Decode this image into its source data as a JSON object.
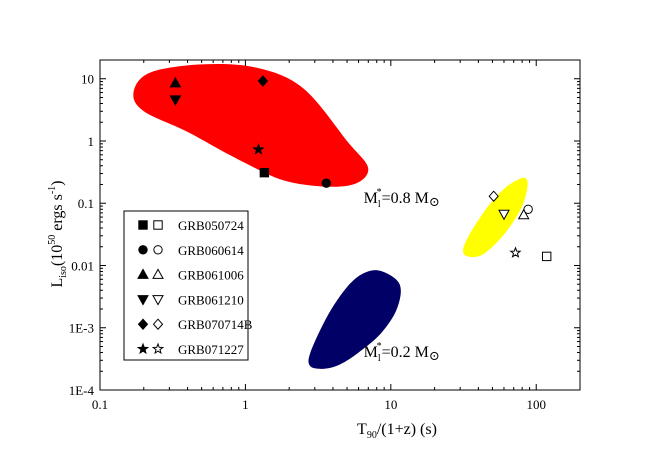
{
  "chart_data": {
    "type": "scatter",
    "title": "",
    "xscale": "log",
    "yscale": "log",
    "xlim": [
      0.1,
      200
    ],
    "ylim": [
      0.0001,
      20
    ],
    "x_ticks": [
      {
        "value": 0.1,
        "label": "0.1"
      },
      {
        "value": 1,
        "label": "1"
      },
      {
        "value": 10,
        "label": "10"
      },
      {
        "value": 100,
        "label": "100"
      }
    ],
    "y_ticks": [
      {
        "value": 0.0001,
        "label": "1E-4"
      },
      {
        "value": 0.001,
        "label": "1E-3"
      },
      {
        "value": 0.01,
        "label": "0.01"
      },
      {
        "value": 0.1,
        "label": "0.1"
      },
      {
        "value": 1,
        "label": "1"
      },
      {
        "value": 10,
        "label": "10"
      }
    ],
    "xlabel": {
      "main": "T",
      "sub": "90",
      "rest": "/(1+z) (s)"
    },
    "ylabel": {
      "main": "L",
      "sub": "iso",
      "rest": "(10",
      "sup": "50",
      "rest2": " ergs s",
      "sup2": "-1",
      "close": ")"
    },
    "regions": [
      {
        "name": "red-region",
        "color": "#ff0000",
        "path": [
          [
            0.17,
            6.0
          ],
          [
            0.22,
            12.5
          ],
          [
            0.5,
            17.0
          ],
          [
            1.2,
            15.0
          ],
          [
            2.5,
            7.0
          ],
          [
            5.0,
            1.0
          ],
          [
            7.0,
            0.35
          ],
          [
            5.0,
            0.19
          ],
          [
            2.0,
            0.22
          ],
          [
            0.9,
            0.5
          ],
          [
            0.4,
            1.4
          ],
          [
            0.2,
            3.0
          ]
        ]
      },
      {
        "name": "yellow-region",
        "color": "#ffff00",
        "path": [
          [
            32,
            0.015
          ],
          [
            33,
            0.025
          ],
          [
            45,
            0.08
          ],
          [
            60,
            0.17
          ],
          [
            75,
            0.24
          ],
          [
            85,
            0.25
          ],
          [
            87,
            0.18
          ],
          [
            80,
            0.09
          ],
          [
            65,
            0.04
          ],
          [
            50,
            0.02
          ],
          [
            40,
            0.014
          ]
        ]
      },
      {
        "name": "navy-region",
        "color": "#000066",
        "path": [
          [
            2.8,
            0.00024
          ],
          [
            2.8,
            0.0004
          ],
          [
            3.7,
            0.0016
          ],
          [
            5.0,
            0.0045
          ],
          [
            6.5,
            0.0075
          ],
          [
            8.5,
            0.0082
          ],
          [
            11.5,
            0.005
          ],
          [
            11.0,
            0.002
          ],
          [
            8.5,
            0.0008
          ],
          [
            6.0,
            0.0004
          ],
          [
            4.5,
            0.00026
          ],
          [
            3.5,
            0.00022
          ]
        ]
      }
    ],
    "series": [
      {
        "name": "GRB050724",
        "symbol": "square",
        "filled": [
          {
            "x": 1.35,
            "y": 0.31
          }
        ],
        "open": [
          {
            "x": 118,
            "y": 0.014
          }
        ]
      },
      {
        "name": "GRB060614",
        "symbol": "circle",
        "filled": [
          {
            "x": 3.6,
            "y": 0.21
          }
        ],
        "open": [
          {
            "x": 88,
            "y": 0.08
          }
        ]
      },
      {
        "name": "GRB061006",
        "symbol": "triangle-up",
        "filled": [
          {
            "x": 0.33,
            "y": 8.5
          }
        ],
        "open": [
          {
            "x": 82,
            "y": 0.065
          }
        ]
      },
      {
        "name": "GRB061210",
        "symbol": "triangle-down",
        "filled": [
          {
            "x": 0.33,
            "y": 4.6
          }
        ],
        "open": [
          {
            "x": 60,
            "y": 0.067
          }
        ]
      },
      {
        "name": "GRB070714B",
        "symbol": "diamond",
        "filled": [
          {
            "x": 1.32,
            "y": 9.2
          }
        ],
        "open": [
          {
            "x": 51,
            "y": 0.13
          }
        ]
      },
      {
        "name": "GRB071227",
        "symbol": "star",
        "filled": [
          {
            "x": 1.23,
            "y": 0.73
          }
        ],
        "open": [
          {
            "x": 72,
            "y": 0.016
          }
        ]
      }
    ],
    "annotations": [
      {
        "name": "mass-annotation-0-8",
        "x": 6.5,
        "y": 0.1,
        "text": "M",
        "sub": "l",
        "sup": "*",
        "rest": "=0.8 M",
        "symbol": "⊙"
      },
      {
        "name": "mass-annotation-0-2",
        "x": 6.5,
        "y": 0.00034,
        "text": "M",
        "sub": "l",
        "sup": "*",
        "rest": "=0.2 M",
        "symbol": "⊙"
      }
    ],
    "legend": {
      "position": "lower-left"
    }
  }
}
